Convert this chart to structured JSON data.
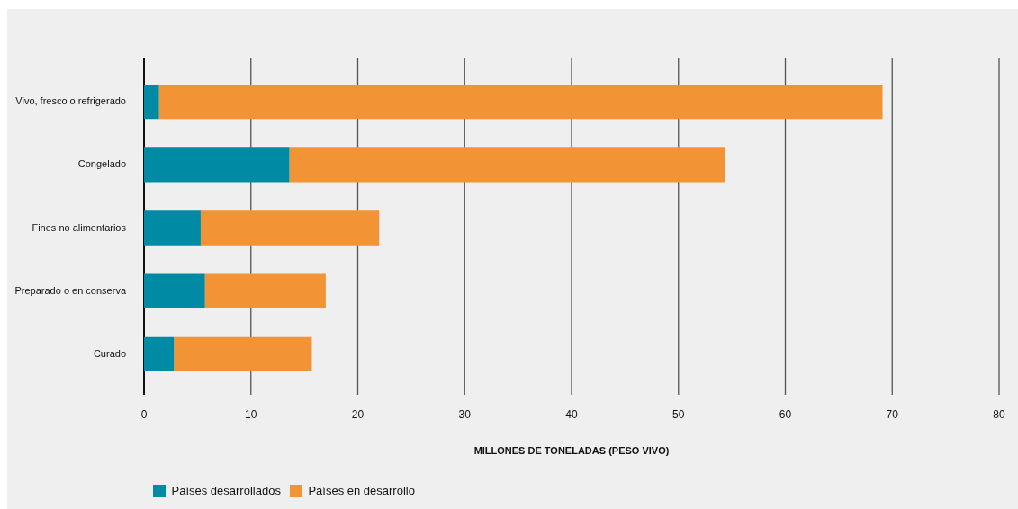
{
  "chart_data": {
    "type": "bar",
    "orientation": "horizontal",
    "stacked": true,
    "categories": [
      "Vivo, fresco o refrigerado",
      "Congelado",
      "Fines no alimentarios",
      "Preparado o en conserva",
      "Curado"
    ],
    "series": [
      {
        "name": "Países desarrollados",
        "color": "#008aa3",
        "values": [
          1.4,
          13.6,
          5.3,
          5.7,
          2.8
        ]
      },
      {
        "name": "Países en desarrollo",
        "color": "#f29435",
        "values": [
          67.7,
          40.8,
          16.7,
          11.3,
          12.9
        ]
      }
    ],
    "xlabel": "MILLONES DE TONELADAS (PESO VIVO)",
    "xlim": [
      0,
      80
    ],
    "xticks": [
      0,
      10,
      20,
      30,
      40,
      50,
      60,
      70,
      80
    ],
    "grid": "x",
    "legend": "bottom left"
  }
}
